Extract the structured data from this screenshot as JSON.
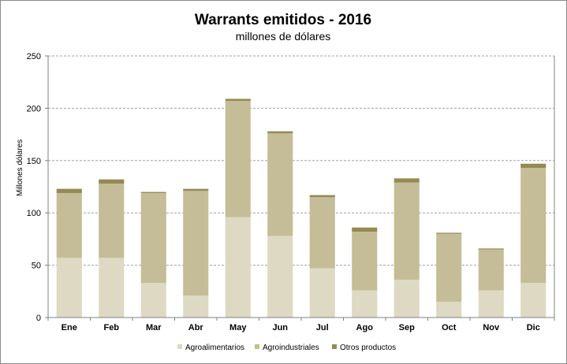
{
  "chart_data": {
    "type": "bar",
    "stacked": true,
    "title": "Warrants  emitidos  - 2016",
    "subtitle": "millones de dólares",
    "ylabel": "Millones dólares",
    "xlabel": "",
    "ylim": [
      0,
      250
    ],
    "yticks": [
      0,
      50,
      100,
      150,
      200,
      250
    ],
    "grid": true,
    "legend_position": "bottom",
    "categories": [
      "Ene",
      "Feb",
      "Mar",
      "Abr",
      "May",
      "Jun",
      "Jul",
      "Ago",
      "Sep",
      "Oct",
      "Nov",
      "Dic"
    ],
    "series": [
      {
        "name": "Agroalimentarios",
        "color": "#ddd9c3",
        "values": [
          57,
          57,
          33,
          21,
          96,
          78,
          47,
          26,
          36,
          15,
          26,
          33
        ]
      },
      {
        "name": "Agroindustriales",
        "color": "#c4bd97",
        "values": [
          62,
          71,
          86,
          100,
          111,
          98,
          68,
          56,
          93,
          65,
          39,
          110
        ]
      },
      {
        "name": "Otros productos",
        "color": "#948a54",
        "values": [
          4,
          4,
          1,
          2,
          2,
          2,
          2,
          4,
          4,
          1,
          1,
          4
        ]
      }
    ]
  }
}
